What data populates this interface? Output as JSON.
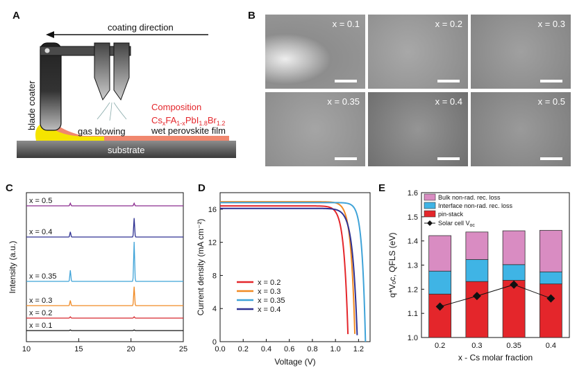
{
  "panelA": {
    "label": "A",
    "direction": "coating direction",
    "blade": "blade coater",
    "gas": "gas blowing",
    "composition_title": "Composition",
    "formula": {
      "a": "Cs",
      "s1": "x",
      "b": "FA",
      "s2": "1-x",
      "c": "PbI",
      "s3": "1.8",
      "d": "Br",
      "s4": "1.2"
    },
    "film": "wet perovskite film",
    "substrate": "substrate",
    "colors": {
      "composition": "#e4262b",
      "film": "#f0876e",
      "wet": "#f5e400",
      "substrate": "#6e6e6e"
    }
  },
  "panelB": {
    "label": "B",
    "images": [
      {
        "label": "x = 0.1"
      },
      {
        "label": "x = 0.2"
      },
      {
        "label": "x = 0.3"
      },
      {
        "label": "x = 0.35"
      },
      {
        "label": "x = 0.4"
      },
      {
        "label": "x = 0.5"
      }
    ]
  },
  "chart_data": [
    {
      "panel": "C",
      "type": "line",
      "xlabel": "",
      "ylabel": "Intensity (a.u.)",
      "xlim": [
        10,
        25
      ],
      "xticks": [
        10,
        15,
        20,
        25
      ],
      "series": [
        {
          "name": "x = 0.1",
          "color": "#111111",
          "offset": 0,
          "peaks": [
            [
              14.2,
              1.5
            ],
            [
              20.3,
              1.5
            ]
          ]
        },
        {
          "name": "x = 0.2",
          "color": "#d7262c",
          "offset": 1,
          "peaks": [
            [
              14.2,
              3
            ],
            [
              20.3,
              3
            ]
          ]
        },
        {
          "name": "x = 0.3",
          "color": "#f08a24",
          "offset": 2,
          "peaks": [
            [
              14.2,
              12
            ],
            [
              20.3,
              44
            ]
          ]
        },
        {
          "name": "x = 0.35",
          "color": "#3fa3d8",
          "offset": 3,
          "peaks": [
            [
              14.2,
              26
            ],
            [
              20.3,
              92
            ]
          ]
        },
        {
          "name": "x = 0.4",
          "color": "#2e3192",
          "offset": 4,
          "peaks": [
            [
              14.2,
              12
            ],
            [
              20.3,
              44
            ]
          ]
        },
        {
          "name": "x = 0.5",
          "color": "#8b2c8f",
          "offset": 5,
          "peaks": [
            [
              14.2,
              6
            ],
            [
              20.3,
              6
            ]
          ]
        }
      ]
    },
    {
      "panel": "D",
      "type": "line",
      "xlabel": "Voltage (V)",
      "ylabel": "Current density (mA cm⁻²)",
      "xlim": [
        0,
        1.3
      ],
      "ylim": [
        0,
        18
      ],
      "xticks": [
        "0.0",
        "0.2",
        "0.4",
        "0.6",
        "0.8",
        "1.0",
        "1.2"
      ],
      "yticks": [
        0,
        4,
        8,
        12,
        16
      ],
      "series": [
        {
          "name": "x = 0.2",
          "color": "#e4262b",
          "jsc": 16.4,
          "voc": 1.11,
          "n": 0.035
        },
        {
          "name": "x = 0.3",
          "color": "#f08a24",
          "jsc": 16.9,
          "voc": 1.17,
          "n": 0.035
        },
        {
          "name": "x = 0.35",
          "color": "#3fa3d8",
          "jsc": 16.8,
          "voc": 1.26,
          "n": 0.03
        },
        {
          "name": "x = 0.4",
          "color": "#2e3192",
          "jsc": 16.1,
          "voc": 1.19,
          "n": 0.04
        }
      ]
    },
    {
      "panel": "E",
      "type": "bar",
      "xlabel": "x - Cs molar fraction",
      "ylabel": "q*Vₒᴄ, QFLS (eV)",
      "categories": [
        "0.2",
        "0.3",
        "0.35",
        "0.4"
      ],
      "ylim": [
        1.0,
        1.6
      ],
      "yticks": [
        "1.0",
        "1.1",
        "1.2",
        "1.3",
        "1.4",
        "1.5",
        "1.6"
      ],
      "stacks": [
        {
          "name": "pin-stack",
          "color": "#e4262b",
          "values": [
            1.18,
            1.232,
            1.237,
            1.222
          ]
        },
        {
          "name": "Interface non-rad. rec. loss",
          "color": "#3fb4e5",
          "values": [
            1.275,
            1.323,
            1.302,
            1.272
          ]
        },
        {
          "name": "Bulk non-rad. rec. loss",
          "color": "#d98cc2",
          "values": [
            1.422,
            1.437,
            1.442,
            1.444
          ]
        }
      ],
      "line": {
        "name": "Solar cell V",
        "sub": "oc",
        "values": [
          1.128,
          1.172,
          1.219,
          1.162
        ]
      }
    }
  ]
}
